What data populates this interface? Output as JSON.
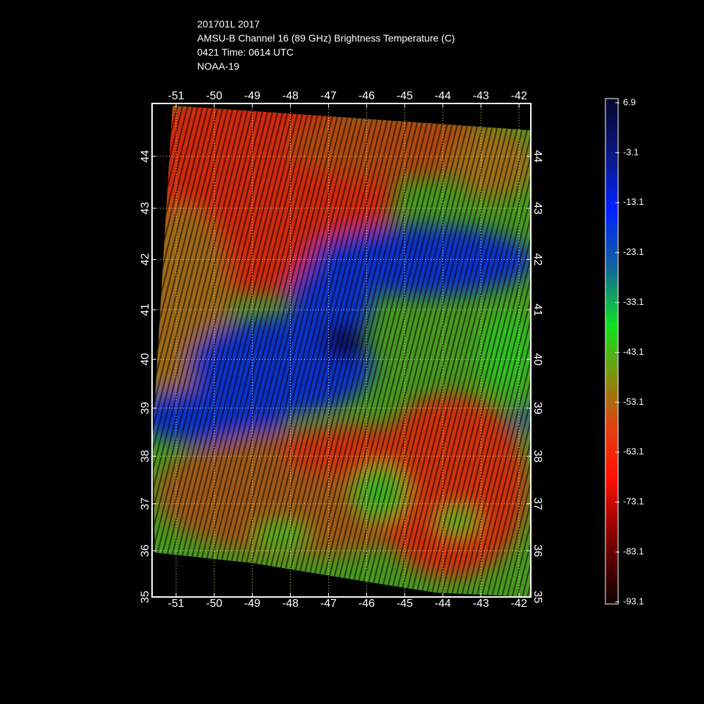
{
  "header": {
    "lines": [
      "201701L 2017",
      "AMSU-B Channel 16 (89 GHz) Brightness Temperature (C)",
      "0421 Time: 0614 UTC",
      "NOAA-19"
    ]
  },
  "map": {
    "lon_range": [
      -51.63,
      -41.69
    ],
    "lat_range": [
      35,
      45
    ],
    "lon_ticks": [
      -51,
      -50,
      -49,
      -48,
      -47,
      -46,
      -45,
      -44,
      -43,
      -42
    ],
    "lat_ticks": [
      35,
      36,
      37,
      38,
      39,
      40,
      41,
      42,
      43,
      44
    ],
    "grid": true
  },
  "colorbar": {
    "ticks": [
      6.9,
      -3.1,
      -13.1,
      -23.1,
      -33.1,
      -43.1,
      -53.1,
      -63.1,
      -73.1,
      -83.1,
      -93.1
    ]
  }
}
